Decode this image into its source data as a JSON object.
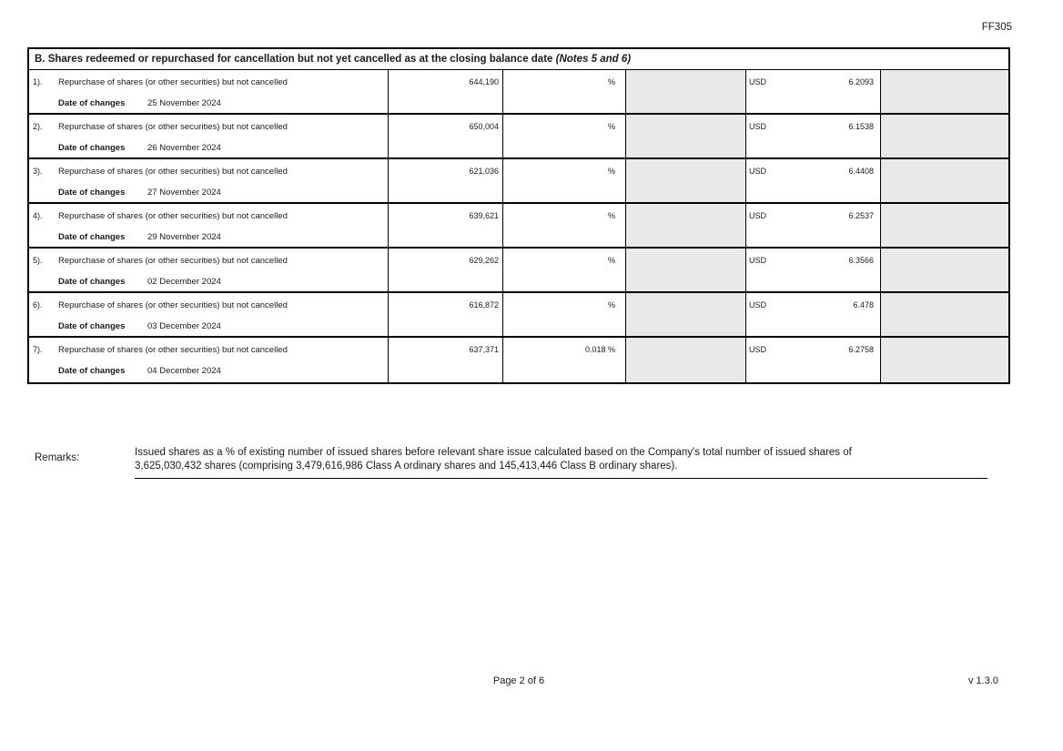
{
  "form_code": "FF305",
  "section": {
    "title_main": "B. Shares redeemed or repurchased for cancellation but not yet cancelled as at the closing balance date ",
    "title_notes": "(Notes 5 and 6)"
  },
  "table": {
    "rows": [
      {
        "num": "1).",
        "desc": "Repurchase of shares (or other securities) but not cancelled",
        "date_label": "Date of changes",
        "date": "25 November 2024",
        "shares": "644,190",
        "percent": "%",
        "currency": "USD",
        "price": "6.2093"
      },
      {
        "num": "2).",
        "desc": "Repurchase of shares (or other securities) but not cancelled",
        "date_label": "Date of changes",
        "date": "26 November 2024",
        "shares": "650,004",
        "percent": "%",
        "currency": "USD",
        "price": "6.1538"
      },
      {
        "num": "3).",
        "desc": "Repurchase of shares (or other securities) but not cancelled",
        "date_label": "Date of changes",
        "date": "27 November 2024",
        "shares": "621,036",
        "percent": "%",
        "currency": "USD",
        "price": "6.4408"
      },
      {
        "num": "4).",
        "desc": "Repurchase of shares (or other securities) but not cancelled",
        "date_label": "Date of changes",
        "date": "29 November 2024",
        "shares": "639,621",
        "percent": "%",
        "currency": "USD",
        "price": "6.2537"
      },
      {
        "num": "5).",
        "desc": "Repurchase of shares (or other securities) but not cancelled",
        "date_label": "Date of changes",
        "date": "02 December 2024",
        "shares": "629,262",
        "percent": "%",
        "currency": "USD",
        "price": "6.3566"
      },
      {
        "num": "6).",
        "desc": "Repurchase of shares (or other securities) but not cancelled",
        "date_label": "Date of changes",
        "date": "03 December 2024",
        "shares": "616,872",
        "percent": "%",
        "currency": "USD",
        "price": "6.478"
      },
      {
        "num": "7).",
        "desc": "Repurchase of shares (or other securities) but not cancelled",
        "date_label": "Date of changes",
        "date": "04 December 2024",
        "shares": "637,371",
        "percent": "0.018 %",
        "currency": "USD",
        "price": "6.2758"
      }
    ]
  },
  "remarks": {
    "label": "Remarks:",
    "line1": "Issued shares as a % of existing number of issued shares before relevant share issue calculated based on the Company's total number of issued shares of",
    "line2": "3,625,030,432 shares (comprising 3,479,616,986 Class A ordinary shares and 145,413,446 Class B ordinary shares)."
  },
  "footer": {
    "page": "Page 2 of 6",
    "version": "v 1.3.0"
  },
  "colors": {
    "cell_gray": "#e9e9e9",
    "border": "#000000"
  }
}
